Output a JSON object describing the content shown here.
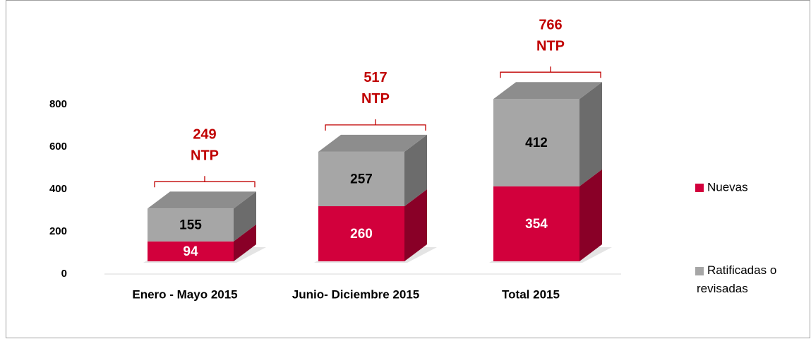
{
  "chart_data": {
    "type": "bar3d-stacked",
    "categories": [
      "Enero - Mayo 2015",
      "Junio- Diciembre 2015",
      "Total 2015"
    ],
    "series": [
      {
        "name": "Nuevas",
        "color": "#d2003c",
        "values": [
          94,
          260,
          354
        ]
      },
      {
        "name": "Ratificadas o revisadas",
        "color": "#a6a6a6",
        "values": [
          155,
          257,
          412
        ]
      }
    ],
    "totals": [
      249,
      517,
      766
    ],
    "total_label": "NTP",
    "ylim": [
      0,
      800
    ],
    "yticks": [
      0,
      200,
      400,
      600,
      800
    ],
    "grid": false,
    "legend": "right"
  }
}
